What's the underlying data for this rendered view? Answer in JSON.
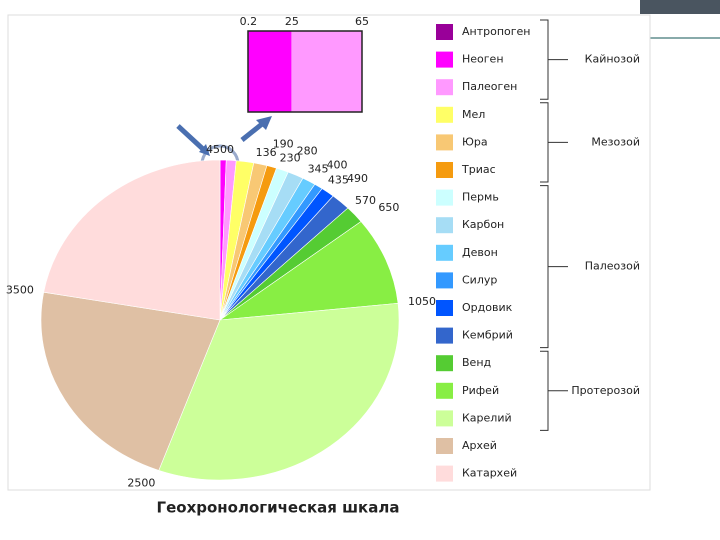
{
  "chart_data": {
    "type": "pie",
    "title": "Геохронологическая шкала",
    "zoom_xlim": [
      0,
      65
    ],
    "eras": [
      {
        "name": "Кайнозой",
        "periods": [
          {
            "name": "Антропоген",
            "color": "#990099",
            "end": 0.2
          },
          {
            "name": "Неоген",
            "color": "#ff00ff",
            "end": 25
          },
          {
            "name": "Палеоген",
            "color": "#ff99ff",
            "end": 65
          }
        ]
      },
      {
        "name": "Мезозой",
        "periods": [
          {
            "name": "Мел",
            "color": "#ffff66",
            "end": 136
          },
          {
            "name": "Юра",
            "color": "#f8c874",
            "end": 190
          },
          {
            "name": "Триас",
            "color": "#f59b0f",
            "end": 230
          }
        ]
      },
      {
        "name": "Палеозой",
        "periods": [
          {
            "name": "Пермь",
            "color": "#ccffff",
            "end": 280
          },
          {
            "name": "Карбон",
            "color": "#a6ddf5",
            "end": 345
          },
          {
            "name": "Девон",
            "color": "#66ccff",
            "end": 400
          },
          {
            "name": "Силур",
            "color": "#3399ff",
            "end": 435
          },
          {
            "name": "Ордовик",
            "color": "#0055ff",
            "end": 490
          },
          {
            "name": "Кембрий",
            "color": "#3366cc",
            "end": 570
          }
        ]
      },
      {
        "name": "Протерозой",
        "periods": [
          {
            "name": "Венд",
            "color": "#55cc33",
            "end": 650
          },
          {
            "name": "Рифей",
            "color": "#88ee44",
            "end": 1050
          },
          {
            "name": "Карелий",
            "color": "#ccff99",
            "end": 2500
          }
        ]
      },
      {
        "name": null,
        "periods": [
          {
            "name": "Архей",
            "color": "#dfc0a4",
            "end": 3500
          },
          {
            "name": "Катархей",
            "color": "#ffdcdc",
            "end": 4500
          }
        ]
      }
    ]
  }
}
